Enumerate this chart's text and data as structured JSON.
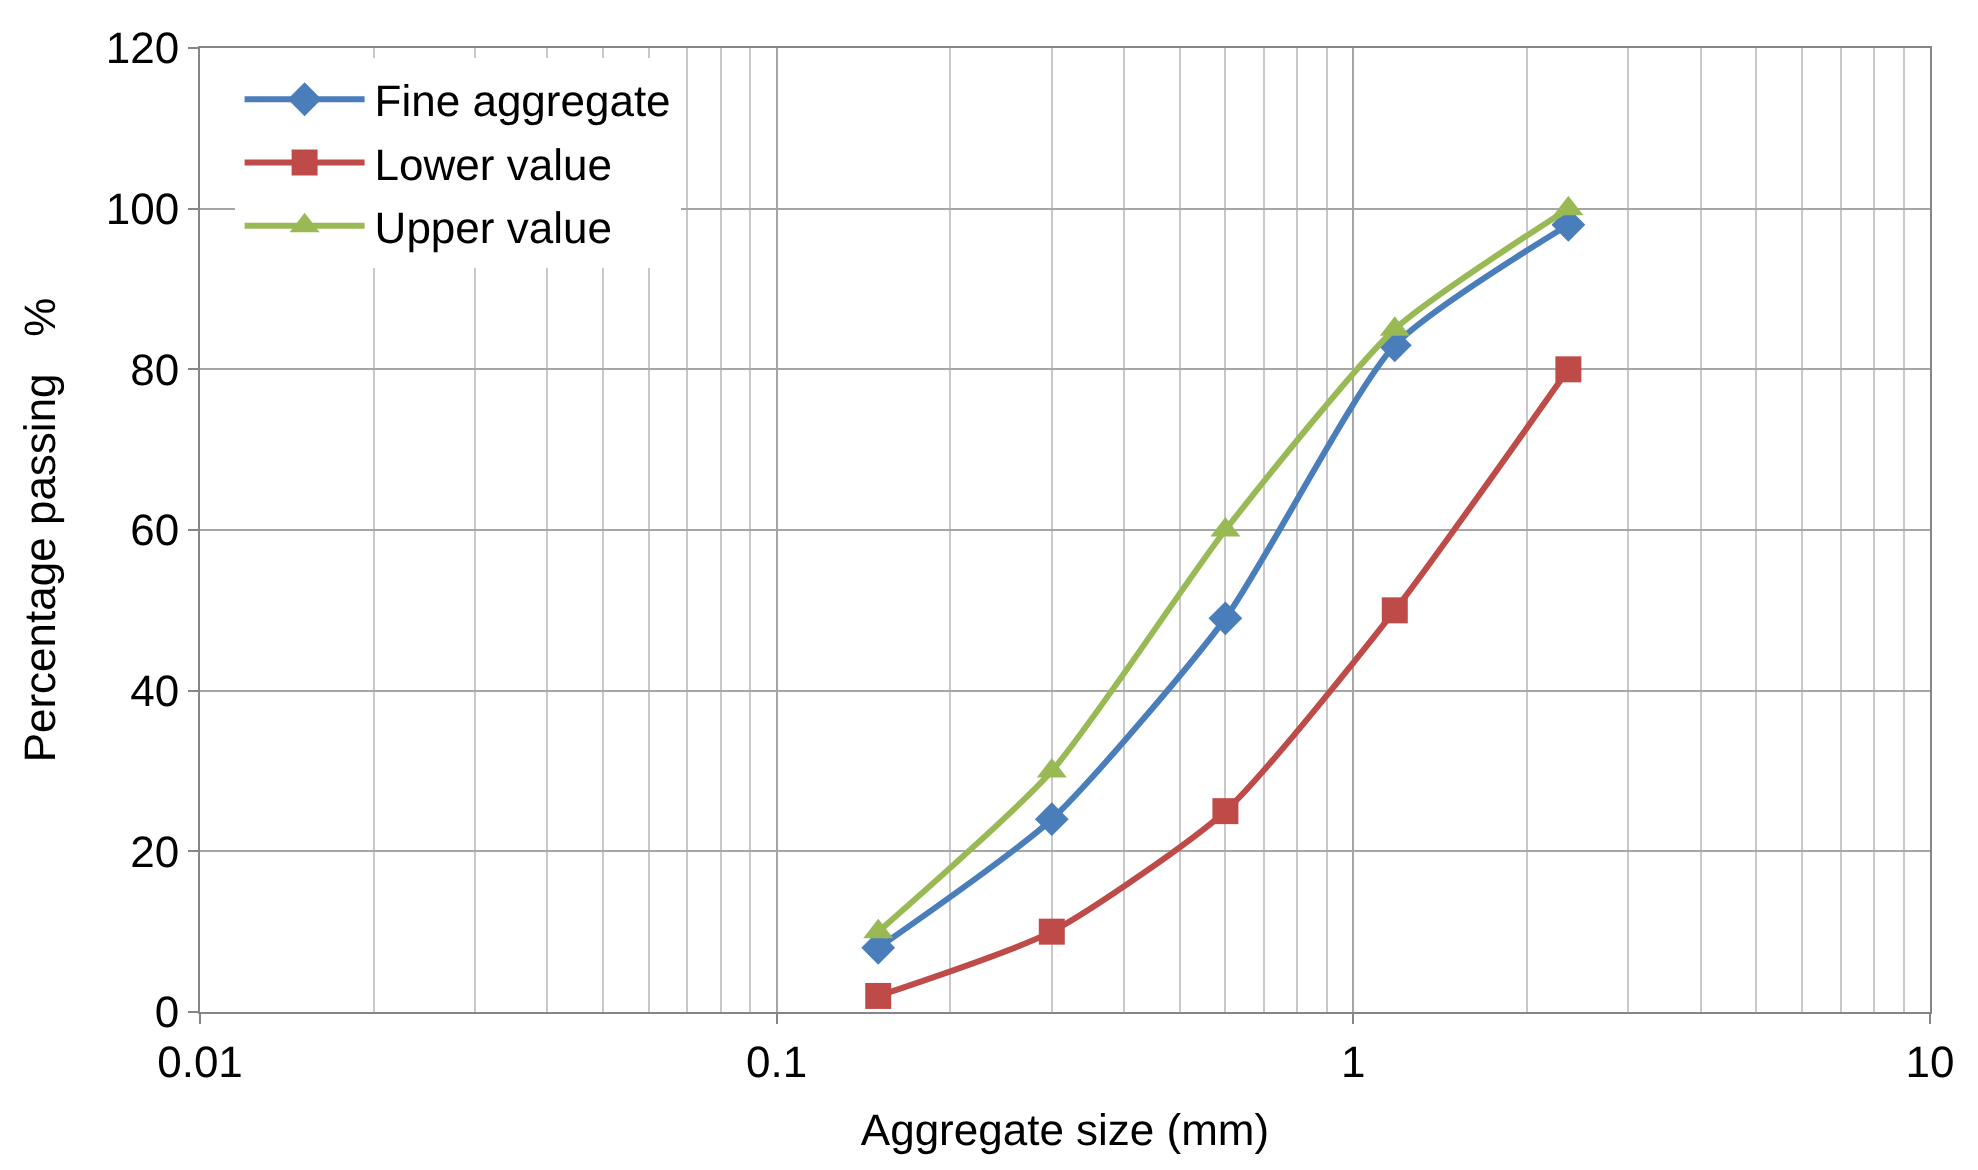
{
  "chart_data": {
    "type": "line",
    "xlabel": "Aggregate size (mm)",
    "ylabel": "Percentage passing   %",
    "x": [
      0.15,
      0.3,
      0.6,
      1.18,
      2.36
    ],
    "series": [
      {
        "name": "Fine aggregate",
        "color": "#4a7ebb",
        "marker": "diamond",
        "values": [
          8,
          24,
          49,
          83,
          98
        ]
      },
      {
        "name": "Lower value",
        "color": "#be4b48",
        "marker": "square",
        "values": [
          2,
          10,
          25,
          50,
          80
        ]
      },
      {
        "name": "Upper value",
        "color": "#98b954",
        "marker": "triangle",
        "values": [
          10,
          30,
          60,
          85,
          100
        ]
      }
    ],
    "log": "x",
    "xlim": [
      0.01,
      10
    ],
    "xticks": [
      0.01,
      0.1,
      1,
      10
    ],
    "ylim": [
      0,
      120
    ],
    "yticks": [
      0,
      20,
      40,
      60,
      80,
      100,
      120
    ],
    "grid": true,
    "legend": "top left",
    "line_style": "solid"
  }
}
